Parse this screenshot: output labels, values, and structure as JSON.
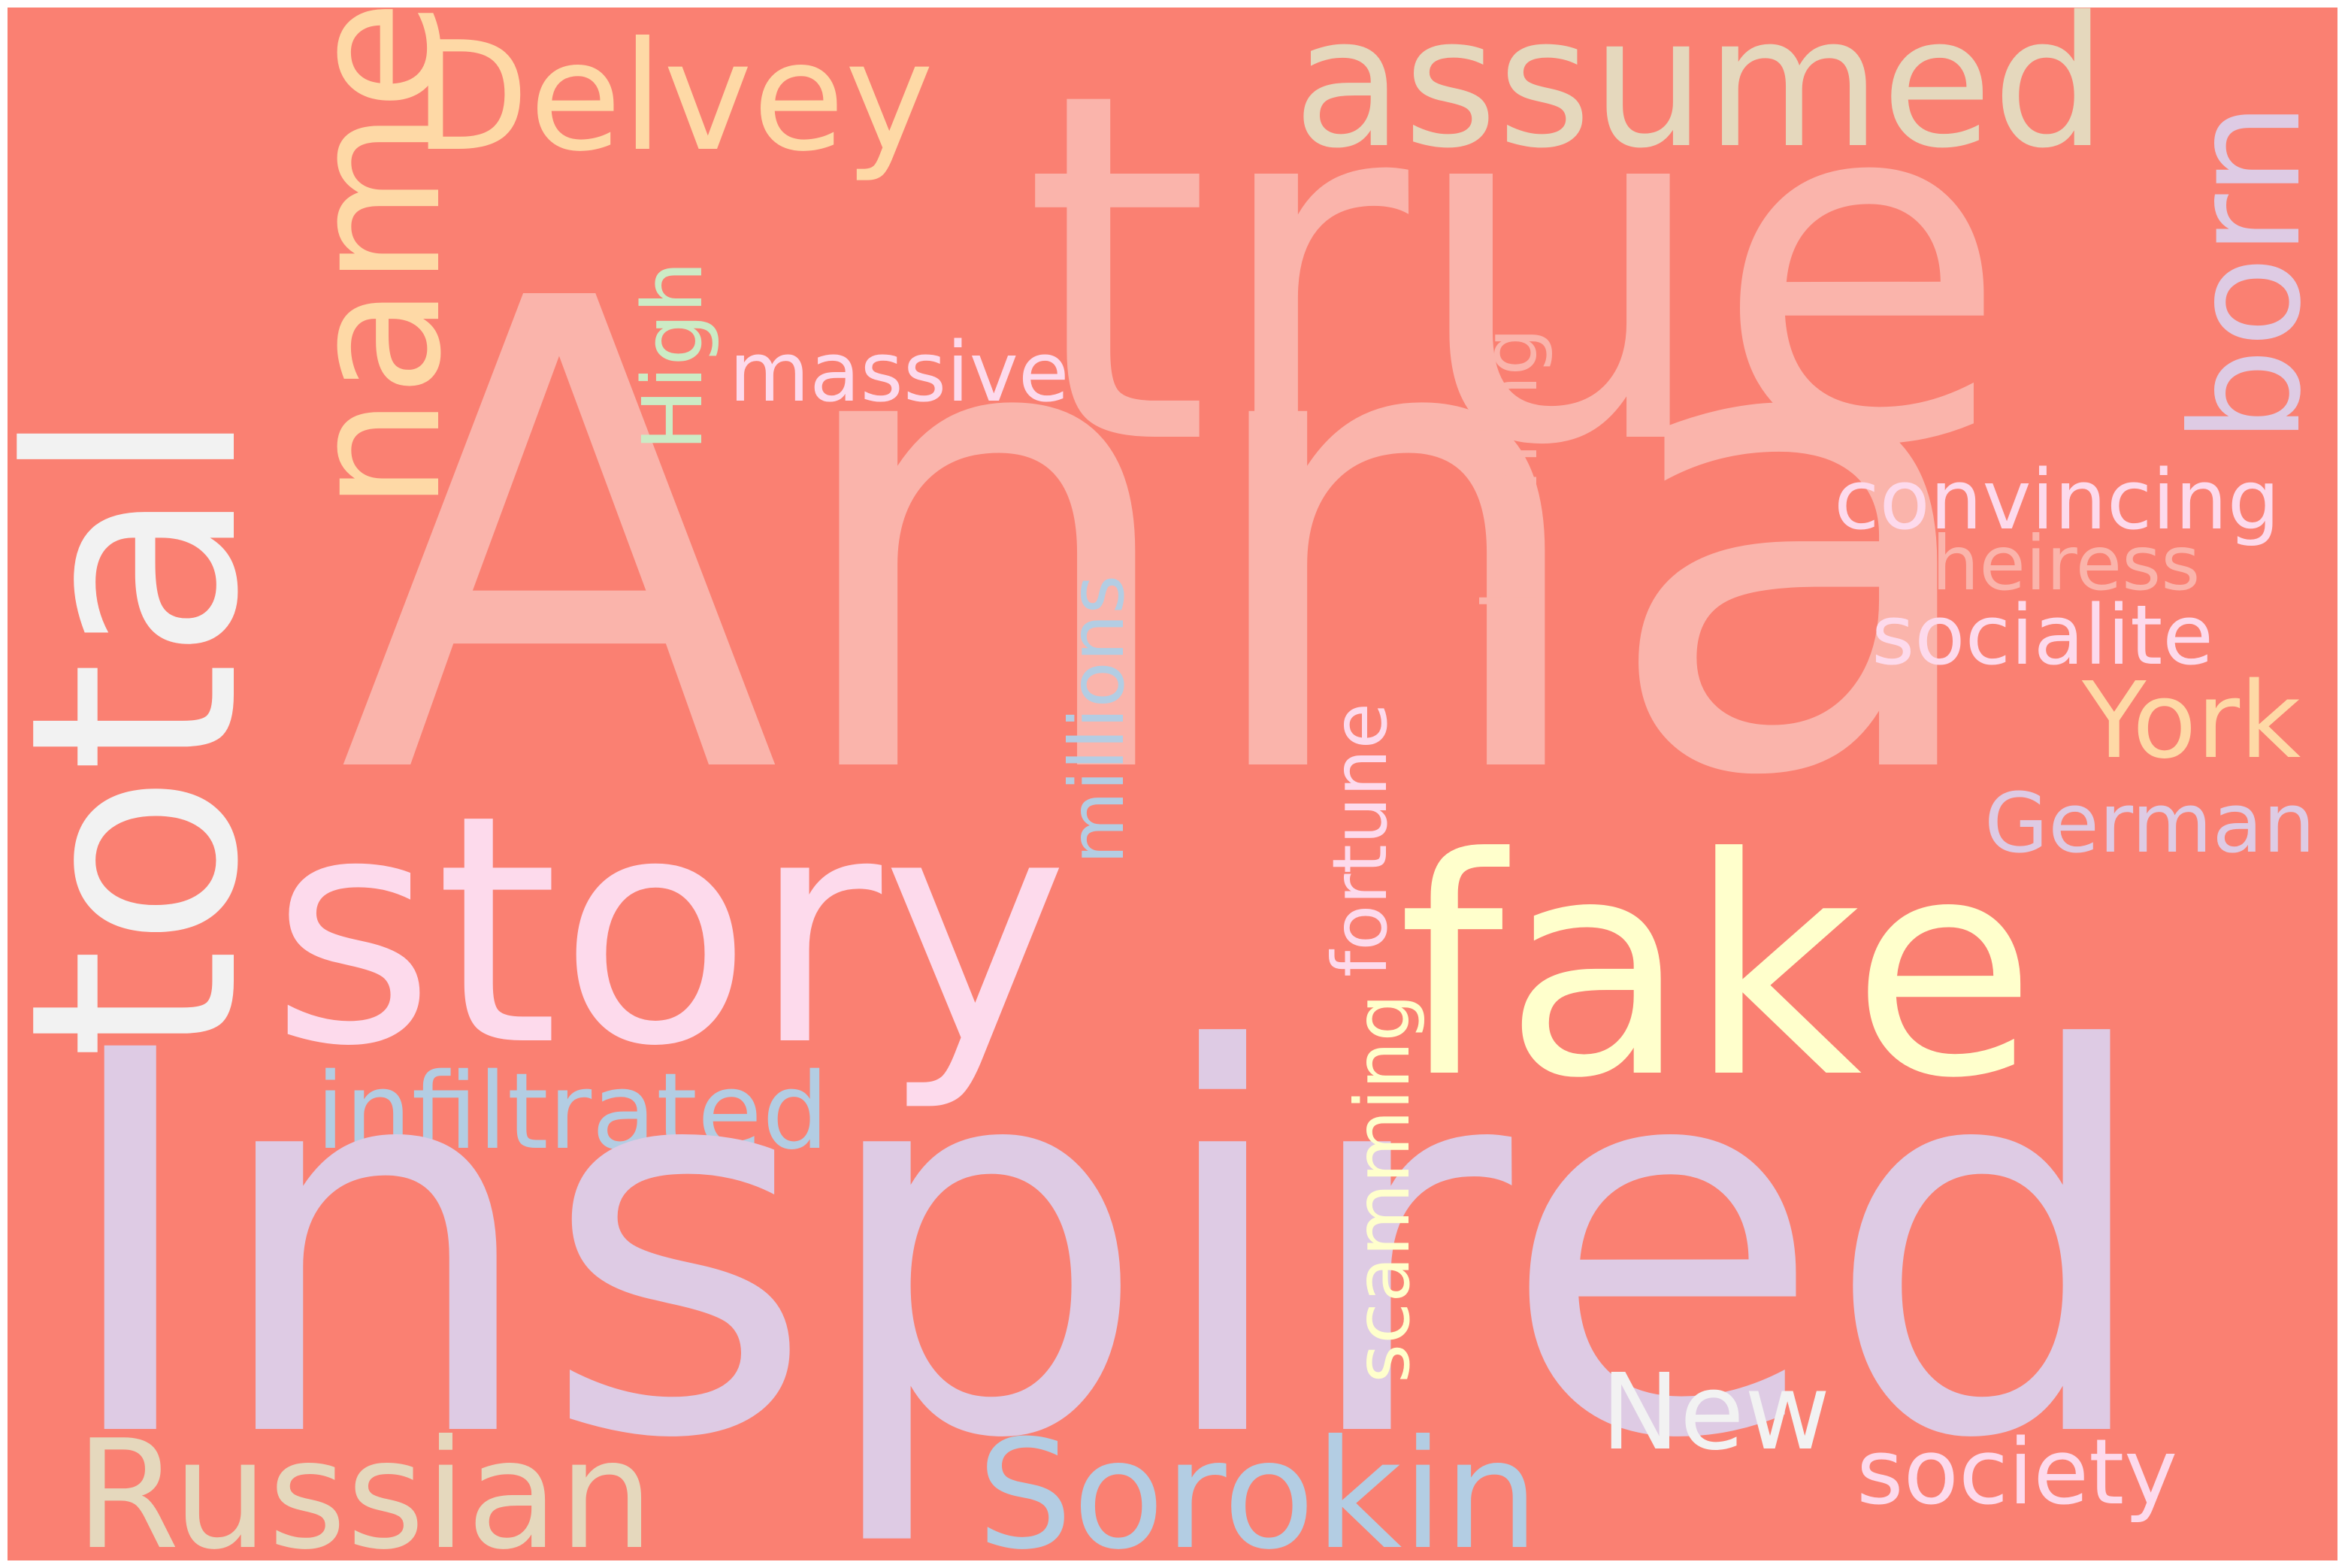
{
  "background_color": "#fa8072",
  "words": {
    "anna": {
      "text": "Anna",
      "color": "#fab4ab"
    },
    "true": {
      "text": "true",
      "color": "#fab4ab"
    },
    "inspired": {
      "text": "Inspired",
      "color": "#decbe4"
    },
    "story": {
      "text": "story",
      "color": "#fddaec"
    },
    "fake": {
      "text": "fake",
      "color": "#ffffcc"
    },
    "total": {
      "text": "total",
      "color": "#f2f2f2"
    },
    "name": {
      "text": "name",
      "color": "#fed9a6"
    },
    "delvey": {
      "text": "Delvey",
      "color": "#fed9a6"
    },
    "assumed": {
      "text": "assumed",
      "color": "#e5d8bd"
    },
    "born": {
      "text": "born",
      "color": "#decbe4"
    },
    "high": {
      "text": "High",
      "color": "#ccebc5"
    },
    "massive": {
      "text": "massive",
      "color": "#fddaec"
    },
    "millions": {
      "text": "millions",
      "color": "#b3cde3"
    },
    "fortune": {
      "text": "fortune",
      "color": "#fddaec"
    },
    "scheming": {
      "text": "scheming",
      "color": "#fab4ab"
    },
    "scamming": {
      "text": "scamming",
      "color": "#ffffcc"
    },
    "infiltrated": {
      "text": "infiltrated",
      "color": "#b3cde3"
    },
    "convincing": {
      "text": "convincing",
      "color": "#fddaec"
    },
    "heiress": {
      "text": "heiress",
      "color": "#fab4ab"
    },
    "socialite": {
      "text": "socialite",
      "color": "#fddaec"
    },
    "york": {
      "text": "York",
      "color": "#fed9a6"
    },
    "german": {
      "text": "German",
      "color": "#decbe4"
    },
    "new": {
      "text": "New",
      "color": "#f2f2f2"
    },
    "society": {
      "text": "society",
      "color": "#fddaec"
    },
    "russian": {
      "text": "Russian",
      "color": "#e5d8bd"
    },
    "sorokin": {
      "text": "Sorokin",
      "color": "#b3cde3"
    }
  }
}
